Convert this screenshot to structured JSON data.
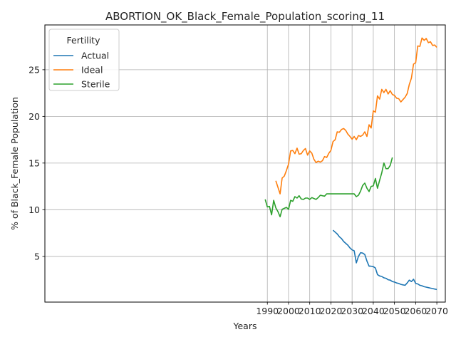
{
  "chart_data": {
    "type": "line",
    "title": "ABORTION_OK_Black_Female_Population_scoring_11",
    "xlabel": "Years",
    "ylabel": "% of Black_Female Population",
    "xlim": [
      1885,
      2074
    ],
    "ylim": [
      0.1,
      29.8
    ],
    "xticks": [
      1990,
      2000,
      2010,
      2020,
      2030,
      2040,
      2050,
      2060,
      2070
    ],
    "yticks": [
      5,
      10,
      15,
      20,
      25
    ],
    "grid": true,
    "legend": {
      "title": "Fertility",
      "placement": "top-left"
    },
    "colors": {
      "Actual": "#1f77b4",
      "Ideal": "#ff7f0e",
      "Sterile": "#2ca02c"
    },
    "series": [
      {
        "name": "Actual",
        "x": [
          2021,
          2022,
          2023,
          2024,
          2025,
          2026,
          2027,
          2028,
          2029,
          2030,
          2031,
          2032,
          2033,
          2034,
          2035,
          2036,
          2037,
          2038,
          2039,
          2040,
          2041,
          2042,
          2043,
          2044,
          2045,
          2046,
          2047,
          2048,
          2049,
          2050,
          2051,
          2052,
          2053,
          2054,
          2055,
          2056,
          2057,
          2058,
          2059,
          2060,
          2061,
          2062,
          2063,
          2064,
          2065,
          2066,
          2067,
          2068,
          2069,
          2070
        ],
        "y": [
          7.8,
          7.6,
          7.4,
          7.1,
          6.9,
          6.6,
          6.4,
          6.2,
          5.9,
          5.7,
          5.6,
          4.3,
          5.0,
          5.4,
          5.35,
          5.2,
          4.5,
          3.95,
          3.95,
          3.9,
          3.75,
          3.05,
          2.9,
          2.85,
          2.7,
          2.65,
          2.5,
          2.45,
          2.3,
          2.25,
          2.15,
          2.1,
          2.0,
          1.95,
          1.9,
          2.15,
          2.45,
          2.3,
          2.55,
          2.1,
          2.05,
          1.9,
          1.85,
          1.75,
          1.7,
          1.65,
          1.6,
          1.55,
          1.5,
          1.45
        ]
      },
      {
        "name": "Ideal",
        "x": [
          1994,
          1995,
          1996,
          1997,
          1998,
          1999,
          2000,
          2001,
          2002,
          2003,
          2004,
          2005,
          2006,
          2007,
          2008,
          2009,
          2010,
          2011,
          2012,
          2013,
          2014,
          2015,
          2016,
          2017,
          2018,
          2019,
          2020,
          2021,
          2022,
          2023,
          2024,
          2025,
          2026,
          2027,
          2028,
          2029,
          2030,
          2031,
          2032,
          2033,
          2034,
          2035,
          2036,
          2037,
          2038,
          2039,
          2040,
          2041,
          2042,
          2043,
          2044,
          2045,
          2046,
          2047,
          2048,
          2049,
          2050,
          2051,
          2052,
          2053,
          2054,
          2055,
          2056,
          2057,
          2058,
          2059,
          2060,
          2061,
          2062,
          2063,
          2064,
          2065,
          2066,
          2067,
          2068,
          2069,
          2070
        ],
        "y": [
          13.1,
          12.4,
          11.7,
          13.4,
          13.6,
          14.2,
          14.9,
          16.3,
          16.35,
          16.0,
          16.6,
          15.95,
          16.0,
          16.35,
          16.55,
          15.85,
          16.3,
          16.05,
          15.4,
          15.05,
          15.2,
          15.1,
          15.25,
          15.7,
          15.6,
          16.05,
          16.35,
          17.3,
          17.5,
          18.35,
          18.3,
          18.6,
          18.7,
          18.5,
          18.1,
          17.85,
          17.55,
          17.85,
          17.5,
          17.95,
          17.85,
          18.0,
          18.35,
          17.85,
          19.1,
          18.75,
          20.6,
          20.45,
          22.2,
          21.85,
          22.9,
          22.55,
          22.9,
          22.4,
          22.75,
          22.35,
          22.25,
          21.95,
          21.9,
          21.55,
          21.8,
          22.05,
          22.45,
          23.4,
          24.1,
          25.6,
          25.75,
          27.55,
          27.5,
          28.4,
          28.15,
          28.35,
          27.9,
          28.0,
          27.6,
          27.65,
          27.4
        ]
      },
      {
        "name": "Sterile",
        "x": [
          1989,
          1990,
          1991,
          1992,
          1993,
          1994,
          1995,
          1996,
          1997,
          1998,
          1999,
          2000,
          2001,
          2002,
          2003,
          2004,
          2005,
          2006,
          2007,
          2008,
          2009,
          2010,
          2011,
          2012,
          2013,
          2014,
          2015,
          2016,
          2017,
          2018,
          2019,
          2020,
          2021,
          2022,
          2023,
          2024,
          2025,
          2026,
          2027,
          2028,
          2029,
          2030,
          2031,
          2032,
          2033,
          2034,
          2035,
          2036,
          2037,
          2038,
          2039,
          2040,
          2041,
          2042,
          2043,
          2044,
          2045,
          2046,
          2047,
          2048,
          2049
        ],
        "y": [
          11.1,
          10.3,
          10.35,
          9.45,
          11.0,
          10.2,
          9.8,
          9.25,
          10.05,
          10.15,
          10.25,
          10.05,
          11.0,
          10.9,
          11.4,
          11.25,
          11.5,
          11.15,
          11.1,
          11.25,
          11.25,
          11.1,
          11.3,
          11.2,
          11.1,
          11.3,
          11.55,
          11.5,
          11.45,
          11.7,
          11.7,
          11.7,
          11.7,
          11.7,
          11.7,
          11.7,
          11.7,
          11.7,
          11.7,
          11.7,
          11.7,
          11.7,
          11.7,
          11.4,
          11.55,
          12.0,
          12.6,
          12.85,
          12.3,
          11.95,
          12.5,
          12.55,
          13.35,
          12.3,
          13.15,
          13.95,
          15.0,
          14.4,
          14.4,
          14.75,
          15.6
        ]
      }
    ]
  }
}
